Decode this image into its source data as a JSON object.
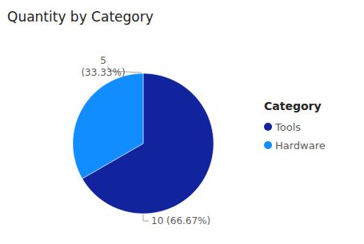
{
  "chart_data": {
    "type": "pie",
    "title": "Quantity by Category",
    "categories": [
      "Tools",
      "Hardware"
    ],
    "values": [
      10,
      5
    ],
    "value_labels": [
      "10 (66.67%)",
      "5 (33.33%)"
    ],
    "colors": [
      "#12239e",
      "#118dff"
    ],
    "legend_title": "Category",
    "legend": "right",
    "data_labels": true
  }
}
